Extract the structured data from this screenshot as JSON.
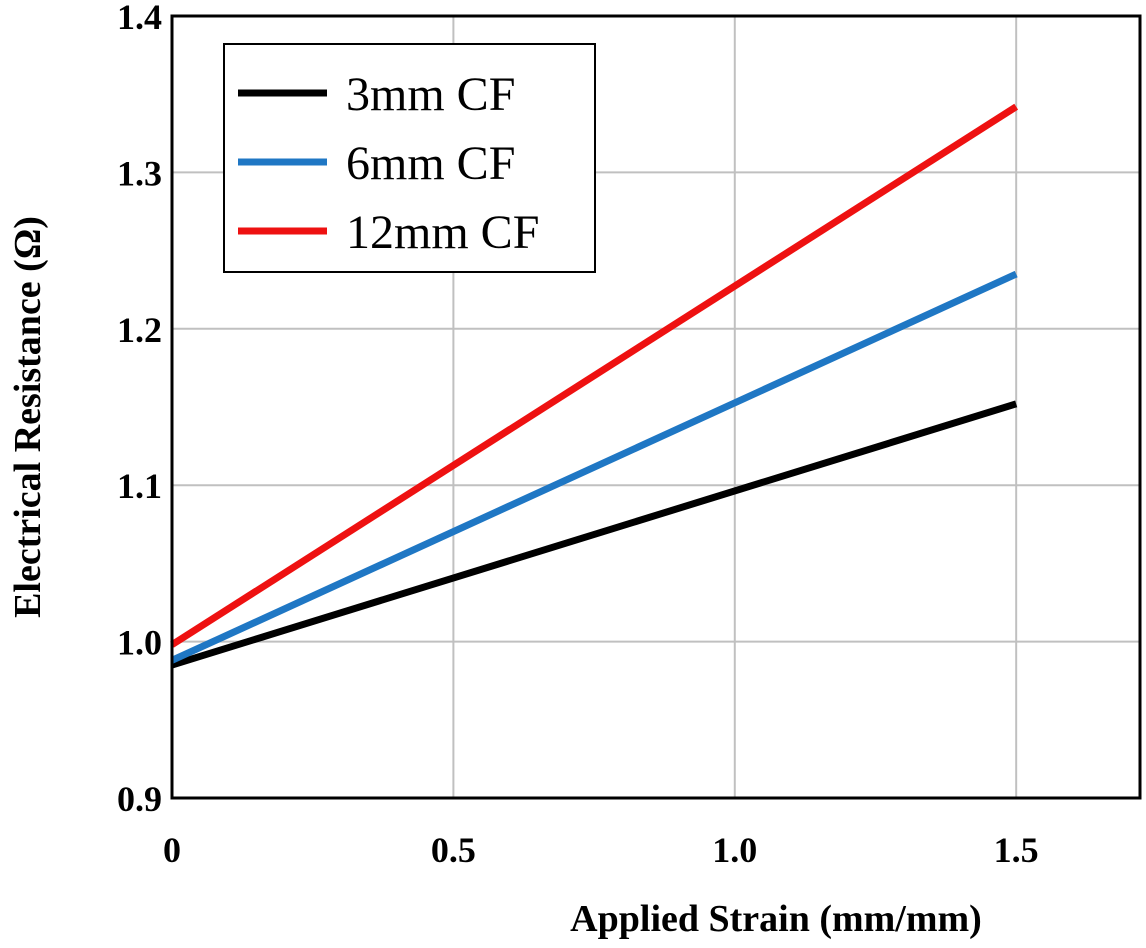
{
  "chart_data": {
    "type": "line",
    "title": "",
    "xlabel": "Applied Strain (mm/mm)",
    "ylabel": "Electrical Resistance (Ω)",
    "xlim": [
      0,
      1.72
    ],
    "ylim": [
      0.9,
      1.4
    ],
    "x_ticks": [
      0,
      0.5,
      1.0,
      1.5
    ],
    "x_tick_labels": [
      "0",
      "0.5",
      "1.0",
      "1.5"
    ],
    "y_ticks": [
      0.9,
      1.0,
      1.1,
      1.2,
      1.3,
      1.4
    ],
    "y_tick_labels": [
      "0.9",
      "1.0",
      "1.1",
      "1.2",
      "1.3",
      "1.4"
    ],
    "grid": true,
    "legend_position": "top-left",
    "series": [
      {
        "name": "3mm CF",
        "color": "#000000",
        "x": [
          0,
          1.5
        ],
        "y": [
          0.985,
          1.152
        ]
      },
      {
        "name": "6mm CF",
        "color": "#1f77c4",
        "x": [
          0,
          1.5
        ],
        "y": [
          0.988,
          1.235
        ]
      },
      {
        "name": "12mm CF",
        "color": "#ee1111",
        "x": [
          0,
          1.5
        ],
        "y": [
          0.998,
          1.342
        ]
      }
    ]
  }
}
